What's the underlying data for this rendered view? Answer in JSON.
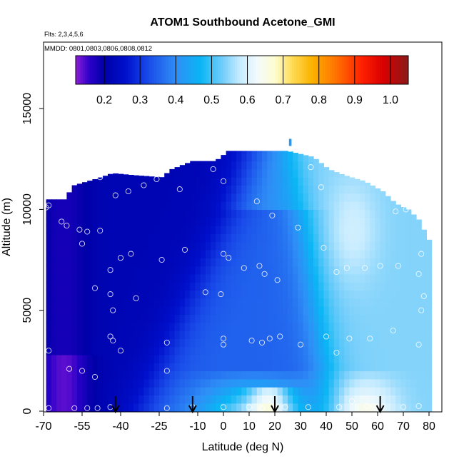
{
  "chart_data": {
    "type": "heatmap",
    "title": "ATOM1 Southbound Acetone_GMI",
    "subtitle_flights": "Flts: 2,3,4,5,6",
    "subtitle_dates": "MMDD: 0801,0803,0806,0808,0812",
    "xlabel": "Latitude (deg N)",
    "ylabel": "Altitude (m)",
    "xlim": [
      -70,
      85
    ],
    "ylim": [
      0,
      18000
    ],
    "x_ticks": [
      -70,
      -55,
      -40,
      -25,
      -10,
      0,
      10,
      20,
      30,
      40,
      50,
      60,
      70,
      80
    ],
    "x_tick_labels": [
      "-70",
      "-55",
      "-40",
      "-25",
      "-10",
      "0",
      "10",
      "20",
      "30",
      "40",
      "50",
      "60",
      "70",
      "80"
    ],
    "y_ticks": [
      0,
      5000,
      10000,
      15000
    ],
    "y_tick_labels": [
      "0",
      "5000",
      "10000",
      "15000"
    ],
    "colorbar": {
      "range": [
        0.12,
        1.05
      ],
      "ticks": [
        0.2,
        0.3,
        0.4,
        0.5,
        0.6,
        0.7,
        0.8,
        0.9,
        1.0
      ],
      "tick_labels": [
        "0.2",
        "0.3",
        "0.4",
        "0.5",
        "0.6",
        "0.7",
        "0.8",
        "0.9",
        "1.0"
      ],
      "stops": [
        [
          0.12,
          "#8c1dd6"
        ],
        [
          0.16,
          "#2a00c8"
        ],
        [
          0.2,
          "#0000a8"
        ],
        [
          0.26,
          "#0010cc"
        ],
        [
          0.32,
          "#1848e8"
        ],
        [
          0.4,
          "#2f8ef6"
        ],
        [
          0.47,
          "#0ab6f5"
        ],
        [
          0.53,
          "#72cdfa"
        ],
        [
          0.58,
          "#c8ecff"
        ],
        [
          0.63,
          "#f4fbfb"
        ],
        [
          0.68,
          "#fffccc"
        ],
        [
          0.72,
          "#ffe060"
        ],
        [
          0.78,
          "#fbb300"
        ],
        [
          0.85,
          "#ff7000"
        ],
        [
          0.92,
          "#ff2000"
        ],
        [
          0.98,
          "#d80000"
        ],
        [
          1.05,
          "#8a1a1a"
        ]
      ]
    },
    "contour_top_altitude": [
      [
        -69,
        10500
      ],
      [
        -62,
        10500
      ],
      [
        -58,
        11200
      ],
      [
        -50,
        11500
      ],
      [
        -43,
        11800
      ],
      [
        -35,
        11700
      ],
      [
        -24,
        11600
      ],
      [
        -20,
        12000
      ],
      [
        -12,
        12400
      ],
      [
        -3,
        12400
      ],
      [
        2,
        12900
      ],
      [
        10,
        12900
      ],
      [
        25,
        12900
      ],
      [
        35,
        12600
      ],
      [
        41,
        12000
      ],
      [
        47,
        11700
      ],
      [
        55,
        11400
      ],
      [
        62,
        10900
      ],
      [
        67,
        10300
      ],
      [
        72,
        10000
      ],
      [
        76,
        9500
      ],
      [
        80,
        8500
      ],
      [
        80,
        500
      ]
    ],
    "arrows_latitude": [
      -42,
      -12,
      20,
      61
    ],
    "obs_points": [
      [
        -68,
        10200
      ],
      [
        -69,
        10100
      ],
      [
        -63,
        9400
      ],
      [
        -61,
        9200
      ],
      [
        -56,
        9000
      ],
      [
        -53,
        8900
      ],
      [
        -48,
        8950
      ],
      [
        -55,
        8300
      ],
      [
        -48,
        11600
      ],
      [
        -42,
        10700
      ],
      [
        -37,
        10900
      ],
      [
        -31,
        11200
      ],
      [
        -26,
        11500
      ],
      [
        -17,
        11000
      ],
      [
        -4,
        12000
      ],
      [
        0,
        11400
      ],
      [
        13,
        10400
      ],
      [
        19,
        9700
      ],
      [
        26,
        13000
      ],
      [
        34,
        12100
      ],
      [
        38,
        11100
      ],
      [
        61,
        11400
      ],
      [
        67,
        9900
      ],
      [
        71,
        10000
      ],
      [
        78,
        9700
      ],
      [
        -40,
        7600
      ],
      [
        -36,
        7800
      ],
      [
        -44,
        7000
      ],
      [
        -24,
        7500
      ],
      [
        -15,
        8000
      ],
      [
        0,
        7800
      ],
      [
        2,
        7600
      ],
      [
        8,
        7100
      ],
      [
        14,
        7200
      ],
      [
        16,
        6800
      ],
      [
        21,
        6500
      ],
      [
        29,
        9100
      ],
      [
        39,
        8100
      ],
      [
        44,
        6900
      ],
      [
        48,
        7100
      ],
      [
        55,
        7100
      ],
      [
        61,
        7200
      ],
      [
        68,
        7200
      ],
      [
        77,
        7800
      ],
      [
        76,
        6800
      ],
      [
        78,
        5700
      ],
      [
        77,
        5000
      ],
      [
        -50,
        6100
      ],
      [
        -44,
        5800
      ],
      [
        -43,
        5000
      ],
      [
        -34,
        5600
      ],
      [
        -7,
        5900
      ],
      [
        -1,
        5800
      ],
      [
        -44,
        3700
      ],
      [
        -43,
        3500
      ],
      [
        -40,
        3000
      ],
      [
        -22,
        3400
      ],
      [
        0,
        3600
      ],
      [
        0,
        3300
      ],
      [
        11,
        3500
      ],
      [
        15,
        3400
      ],
      [
        18,
        3600
      ],
      [
        22,
        3700
      ],
      [
        30,
        3300
      ],
      [
        40,
        3700
      ],
      [
        44,
        2900
      ],
      [
        49,
        3600
      ],
      [
        57,
        3600
      ],
      [
        66,
        4000
      ],
      [
        76,
        3300
      ],
      [
        -68,
        3000
      ],
      [
        -60,
        2100
      ],
      [
        -55,
        2000
      ],
      [
        -50,
        1700
      ],
      [
        -22,
        2000
      ],
      [
        -68,
        150
      ],
      [
        -58,
        150
      ],
      [
        -53,
        150
      ],
      [
        -49,
        150
      ],
      [
        -44,
        200
      ],
      [
        -22,
        150
      ],
      [
        -12,
        200
      ],
      [
        0,
        200
      ],
      [
        10,
        200
      ],
      [
        15,
        150
      ],
      [
        24,
        200
      ],
      [
        33,
        200
      ],
      [
        45,
        200
      ],
      [
        50,
        500
      ],
      [
        56,
        250
      ],
      [
        70,
        200
      ],
      [
        76,
        250
      ]
    ],
    "grid": false,
    "legend": "none"
  }
}
